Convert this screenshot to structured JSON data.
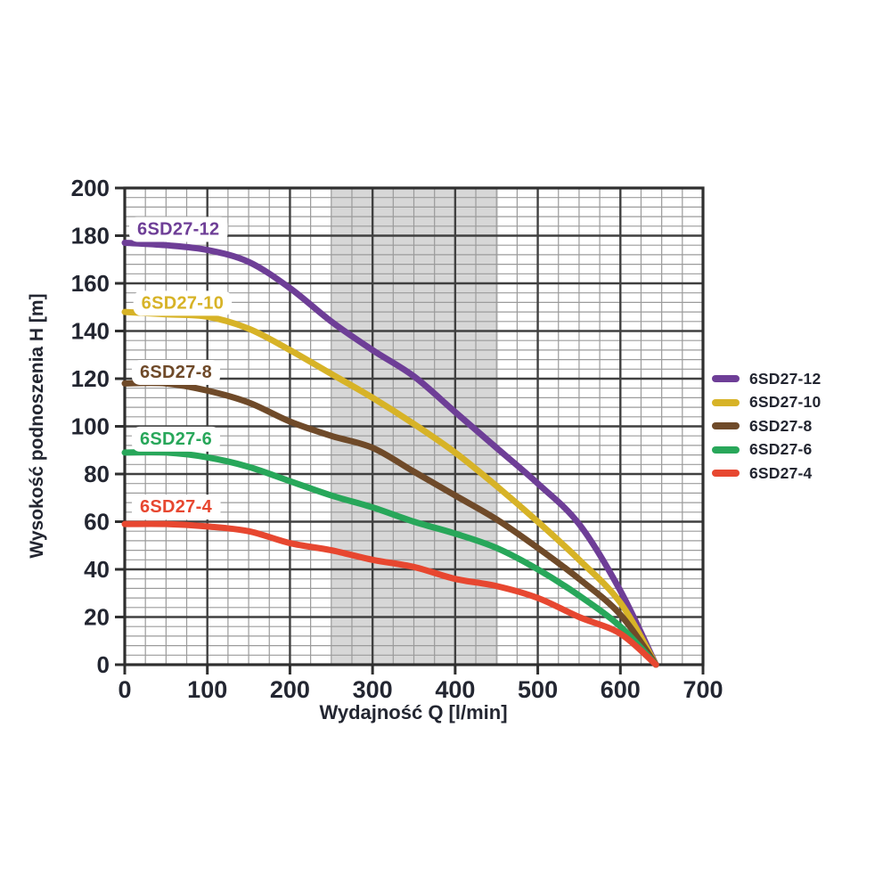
{
  "chart_data": {
    "type": "line",
    "title": "",
    "xlabel": "Wydajność Q [l/min]",
    "ylabel": "Wysokość podnoszenia H [m]",
    "xlim": [
      0,
      700
    ],
    "ylim": [
      0,
      200
    ],
    "x_major_step": 100,
    "x_minor_step": 25,
    "y_major_step": 20,
    "y_minor_step": 4,
    "x_tick_labels": [
      "0",
      "100",
      "200",
      "300",
      "400",
      "500",
      "600",
      "700"
    ],
    "y_tick_labels": [
      "0",
      "20",
      "40",
      "60",
      "80",
      "100",
      "120",
      "140",
      "160",
      "180",
      "200"
    ],
    "grid": true,
    "legend_position": "right-center",
    "shaded_band": {
      "x_from": 250,
      "x_to": 452,
      "color": "#d7d7d7"
    },
    "convergence_point": [
      643,
      0
    ],
    "series": [
      {
        "name": "6SD27-12",
        "color": "#6E3E97",
        "points": [
          [
            0,
            177
          ],
          [
            50,
            176
          ],
          [
            100,
            174
          ],
          [
            150,
            169
          ],
          [
            200,
            158
          ],
          [
            250,
            144
          ],
          [
            300,
            132
          ],
          [
            350,
            121
          ],
          [
            400,
            106
          ],
          [
            450,
            91
          ],
          [
            500,
            76
          ],
          [
            550,
            59
          ],
          [
            600,
            31
          ],
          [
            643,
            0
          ]
        ]
      },
      {
        "name": "6SD27-10",
        "color": "#D7B327",
        "points": [
          [
            0,
            148
          ],
          [
            50,
            147
          ],
          [
            100,
            146
          ],
          [
            150,
            141
          ],
          [
            200,
            132
          ],
          [
            250,
            122
          ],
          [
            300,
            112
          ],
          [
            350,
            101
          ],
          [
            400,
            89
          ],
          [
            450,
            75
          ],
          [
            500,
            60
          ],
          [
            550,
            44
          ],
          [
            600,
            26
          ],
          [
            643,
            0
          ]
        ]
      },
      {
        "name": "6SD27-8",
        "color": "#6F4A29",
        "points": [
          [
            0,
            118
          ],
          [
            50,
            118
          ],
          [
            100,
            115
          ],
          [
            150,
            110
          ],
          [
            200,
            102
          ],
          [
            250,
            96
          ],
          [
            300,
            91
          ],
          [
            350,
            81
          ],
          [
            400,
            71
          ],
          [
            450,
            61
          ],
          [
            500,
            49
          ],
          [
            550,
            36
          ],
          [
            600,
            21
          ],
          [
            643,
            0
          ]
        ]
      },
      {
        "name": "6SD27-6",
        "color": "#28A75A",
        "points": [
          [
            0,
            89
          ],
          [
            50,
            89
          ],
          [
            100,
            87
          ],
          [
            150,
            83
          ],
          [
            200,
            77
          ],
          [
            250,
            71
          ],
          [
            300,
            66
          ],
          [
            350,
            60
          ],
          [
            400,
            55
          ],
          [
            450,
            49
          ],
          [
            500,
            40
          ],
          [
            550,
            29
          ],
          [
            600,
            16
          ],
          [
            643,
            0
          ]
        ]
      },
      {
        "name": "6SD27-4",
        "color": "#E74730",
        "points": [
          [
            0,
            59
          ],
          [
            50,
            59
          ],
          [
            100,
            58
          ],
          [
            150,
            56
          ],
          [
            200,
            51
          ],
          [
            250,
            48
          ],
          [
            300,
            44
          ],
          [
            350,
            41
          ],
          [
            400,
            36
          ],
          [
            450,
            33
          ],
          [
            500,
            28
          ],
          [
            550,
            20
          ],
          [
            600,
            13
          ],
          [
            643,
            0
          ]
        ]
      }
    ],
    "curve_labels": [
      {
        "text": "6SD27-12",
        "q": 65,
        "h": 183
      },
      {
        "text": "6SD27-10",
        "q": 70,
        "h": 152
      },
      {
        "text": "6SD27-8",
        "q": 62,
        "h": 123
      },
      {
        "text": "6SD27-6",
        "q": 62,
        "h": 95
      },
      {
        "text": "6SD27-4",
        "q": 62,
        "h": 66.5
      }
    ]
  },
  "legend": {
    "items": [
      "6SD27-12",
      "6SD27-10",
      "6SD27-8",
      "6SD27-6",
      "6SD27-4"
    ]
  },
  "style": {
    "text_color": "#232631",
    "major_grid_color": "#404040",
    "minor_grid_color": "#9b9b9b",
    "spine_color": "#2f2f2f",
    "background": "#ffffff"
  }
}
